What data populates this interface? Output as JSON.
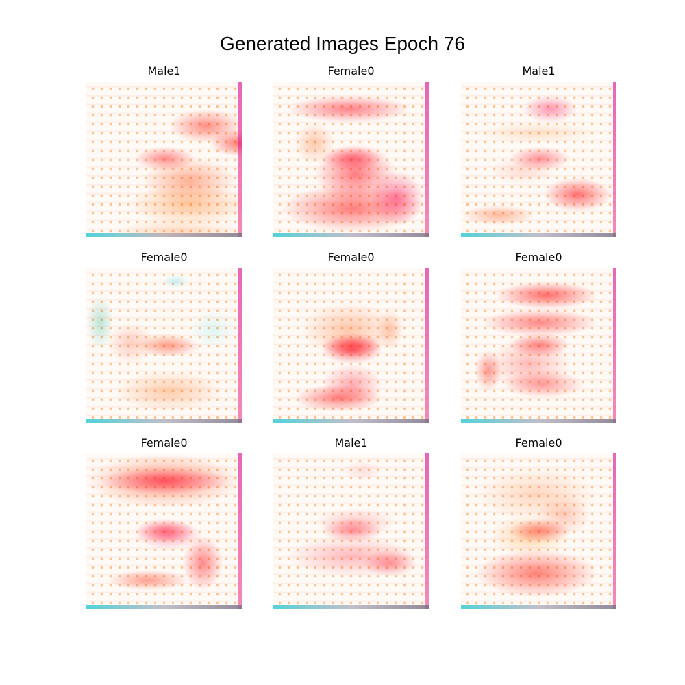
{
  "figure": {
    "title": "Generated Images Epoch 76"
  },
  "panels": [
    {
      "label": "Male1",
      "accent": "#ff1e1e",
      "style": "upper-band"
    },
    {
      "label": "Female0",
      "accent": "#ff0a28",
      "style": "face-dense"
    },
    {
      "label": "Male1",
      "accent": "#ff2a3c",
      "style": "lower-band"
    },
    {
      "label": "Female0",
      "accent": "#ff7a4a",
      "style": "faint-cyan"
    },
    {
      "label": "Female0",
      "accent": "#ff1020",
      "style": "face-center"
    },
    {
      "label": "Female0",
      "accent": "#ff1818",
      "style": "helmet"
    },
    {
      "label": "Female0",
      "accent": "#ff1030",
      "style": "top-heavy"
    },
    {
      "label": "Male1",
      "accent": "#ff3040",
      "style": "sparse"
    },
    {
      "label": "Female0",
      "accent": "#ff2a20",
      "style": "bottom-heavy"
    }
  ]
}
